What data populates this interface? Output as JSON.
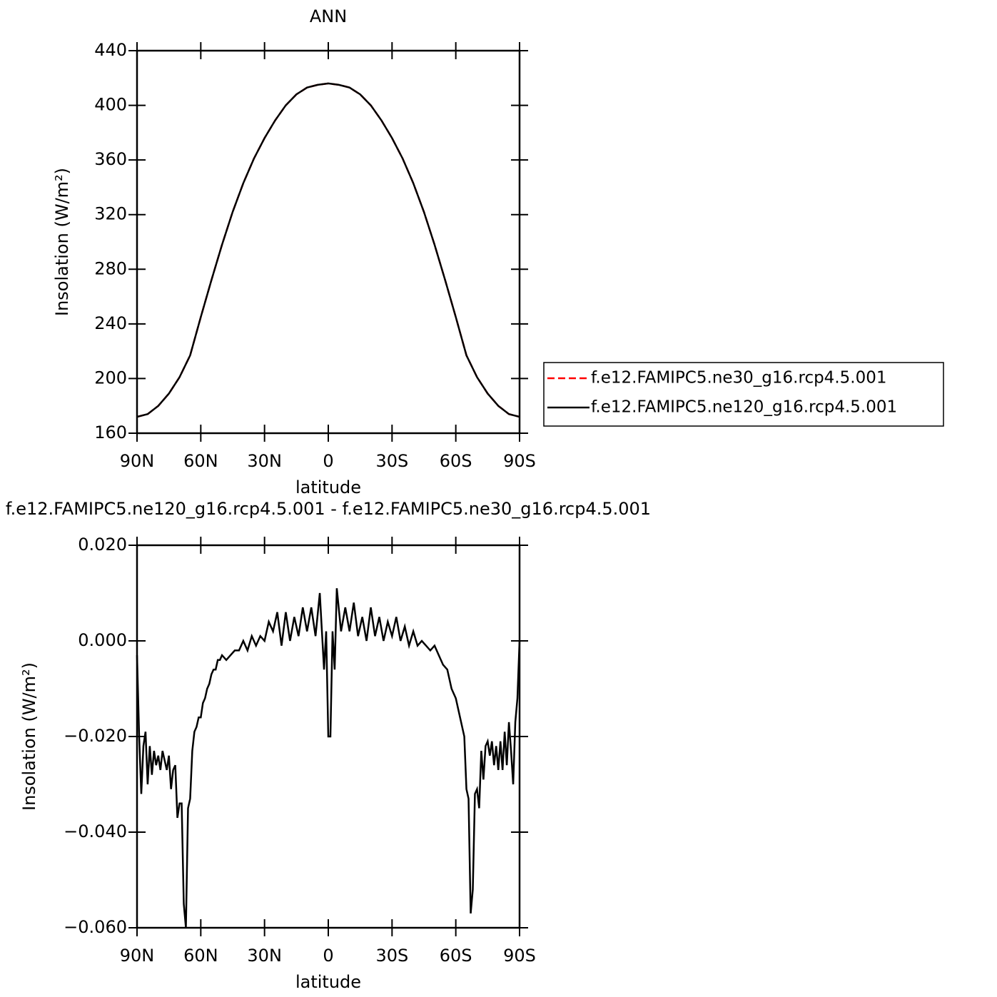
{
  "chart_data": [
    {
      "type": "line",
      "title": "ANN",
      "xlabel": "latitude",
      "ylabel": "Insolation (W/m²)",
      "x": [
        90,
        85,
        80,
        75,
        70,
        65,
        60,
        55,
        50,
        45,
        40,
        35,
        30,
        25,
        20,
        15,
        10,
        5,
        0,
        -5,
        -10,
        -15,
        -20,
        -25,
        -30,
        -35,
        -40,
        -45,
        -50,
        -55,
        -60,
        -65,
        -70,
        -75,
        -80,
        -85,
        -90
      ],
      "series": [
        {
          "name": "f.e12.FAMIPC5.ne30_g16.rcp4.5.001",
          "color": "#ff0000",
          "linestyle": "dashed",
          "values": [
            172,
            174,
            180,
            189,
            201,
            217,
            245,
            272,
            298,
            322,
            343,
            361,
            376,
            389,
            400,
            408,
            413,
            415,
            416,
            415,
            413,
            408,
            400,
            389,
            376,
            361,
            343,
            322,
            298,
            272,
            245,
            217,
            201,
            189,
            180,
            174,
            172
          ]
        },
        {
          "name": "f.e12.FAMIPC5.ne120_g16.rcp4.5.001",
          "color": "#000000",
          "linestyle": "solid",
          "values": [
            172,
            174,
            180,
            189,
            201,
            217,
            245,
            272,
            298,
            322,
            343,
            361,
            376,
            389,
            400,
            408,
            413,
            415,
            416,
            415,
            413,
            408,
            400,
            389,
            376,
            361,
            343,
            322,
            298,
            272,
            245,
            217,
            201,
            189,
            180,
            174,
            172
          ]
        }
      ],
      "xlim": [
        90,
        -90
      ],
      "xticks": [
        {
          "value": 90,
          "label": "90N"
        },
        {
          "value": 60,
          "label": "60N"
        },
        {
          "value": 30,
          "label": "30N"
        },
        0,
        {
          "value": -30,
          "label": "30S"
        },
        {
          "value": -60,
          "label": "60S"
        },
        {
          "value": -90,
          "label": "90S"
        }
      ],
      "ylim": [
        160,
        440
      ],
      "yticks": [
        160,
        200,
        240,
        280,
        320,
        360,
        400,
        440
      ],
      "legend": "outside right"
    },
    {
      "type": "line",
      "title": "f.e12.FAMIPC5.ne120_g16.rcp4.5.001 - f.e12.FAMIPC5.ne30_g16.rcp4.5.001",
      "xlabel": "latitude",
      "ylabel": "Insolation (W/m²)",
      "x": [
        90,
        89,
        88,
        87,
        86,
        85,
        84,
        83,
        82,
        81,
        80,
        79,
        78,
        77,
        76,
        75,
        74,
        73,
        72,
        71,
        70,
        69,
        68,
        67,
        66,
        65,
        64,
        63,
        62,
        61,
        60,
        59,
        58,
        57,
        56,
        55,
        54,
        53,
        52,
        51,
        50,
        48,
        46,
        44,
        42,
        40,
        38,
        36,
        34,
        32,
        30,
        28,
        26,
        24,
        22,
        20,
        18,
        16,
        14,
        12,
        10,
        8,
        6,
        4,
        2,
        1,
        0,
        -1,
        -2,
        -3,
        -4,
        -6,
        -8,
        -10,
        -12,
        -14,
        -16,
        -18,
        -20,
        -22,
        -24,
        -26,
        -28,
        -30,
        -32,
        -34,
        -36,
        -38,
        -40,
        -42,
        -44,
        -46,
        -48,
        -50,
        -52,
        -54,
        -56,
        -58,
        -60,
        -62,
        -64,
        -65,
        -66,
        -67,
        -68,
        -69,
        -70,
        -71,
        -72,
        -73,
        -74,
        -75,
        -76,
        -77,
        -78,
        -79,
        -80,
        -81,
        -82,
        -83,
        -84,
        -85,
        -86,
        -87,
        -88,
        -89,
        -90
      ],
      "values": [
        -0.003,
        -0.02,
        -0.032,
        -0.022,
        -0.019,
        -0.03,
        -0.022,
        -0.028,
        -0.023,
        -0.026,
        -0.024,
        -0.027,
        -0.023,
        -0.025,
        -0.027,
        -0.024,
        -0.031,
        -0.027,
        -0.026,
        -0.037,
        -0.034,
        -0.034,
        -0.055,
        -0.06,
        -0.035,
        -0.033,
        -0.023,
        -0.019,
        -0.018,
        -0.016,
        -0.016,
        -0.013,
        -0.012,
        -0.01,
        -0.009,
        -0.007,
        -0.006,
        -0.006,
        -0.004,
        -0.004,
        -0.003,
        -0.004,
        -0.003,
        -0.002,
        -0.002,
        0.0,
        -0.002,
        0.001,
        -0.001,
        0.001,
        0.0,
        0.004,
        0.002,
        0.006,
        -0.001,
        0.006,
        0.0,
        0.005,
        0.001,
        0.007,
        0.002,
        0.007,
        0.001,
        0.01,
        -0.006,
        0.002,
        -0.02,
        -0.02,
        0.002,
        -0.006,
        0.011,
        0.002,
        0.007,
        0.002,
        0.008,
        0.001,
        0.005,
        0.0,
        0.007,
        0.001,
        0.005,
        0.0,
        0.004,
        0.001,
        0.005,
        0.0,
        0.003,
        -0.001,
        0.002,
        -0.001,
        0.0,
        -0.001,
        -0.002,
        -0.001,
        -0.003,
        -0.005,
        -0.006,
        -0.01,
        -0.012,
        -0.016,
        -0.02,
        -0.031,
        -0.033,
        -0.057,
        -0.052,
        -0.032,
        -0.031,
        -0.035,
        -0.023,
        -0.029,
        -0.022,
        -0.021,
        -0.024,
        -0.021,
        -0.026,
        -0.022,
        -0.027,
        -0.021,
        -0.027,
        -0.019,
        -0.026,
        -0.017,
        -0.023,
        -0.03,
        -0.017,
        -0.012,
        0.0
      ],
      "color": "#000000",
      "xlim": [
        90,
        -90
      ],
      "xticks": [
        {
          "value": 90,
          "label": "90N"
        },
        {
          "value": 60,
          "label": "60N"
        },
        {
          "value": 30,
          "label": "30N"
        },
        0,
        {
          "value": -30,
          "label": "30S"
        },
        {
          "value": -60,
          "label": "60S"
        },
        {
          "value": -90,
          "label": "90S"
        }
      ],
      "ylim": [
        -0.06,
        0.02
      ],
      "yticks": [
        {
          "value": -0.06,
          "label": "−0.060"
        },
        {
          "value": -0.04,
          "label": "−0.040"
        },
        {
          "value": -0.02,
          "label": "−0.020"
        },
        {
          "value": 0,
          "label": "0.000"
        },
        {
          "value": 0.02,
          "label": "0.020"
        }
      ]
    }
  ]
}
